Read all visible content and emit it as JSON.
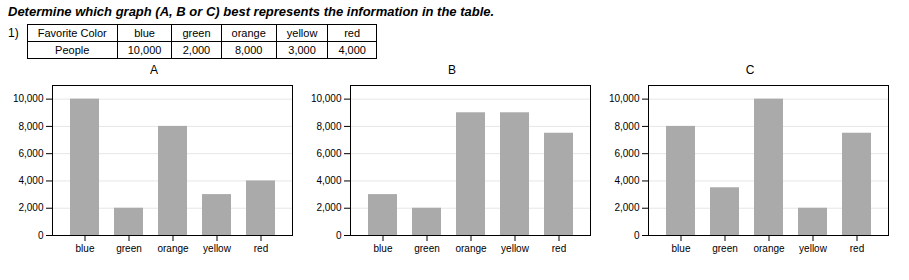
{
  "title": "Determine which graph (A, B or C) best represents the information in the table.",
  "chart_data": [
    {
      "type": "table",
      "annotations": [
        "1)"
      ],
      "columns": [
        "Favorite Color",
        "blue",
        "green",
        "orange",
        "yellow",
        "red"
      ],
      "rows": [
        [
          "People",
          "10,000",
          "2,000",
          "8,000",
          "3,000",
          "4,000"
        ]
      ]
    },
    {
      "type": "bar",
      "title": "A",
      "categories": [
        "blue",
        "green",
        "orange",
        "yellow",
        "red"
      ],
      "values": [
        10000,
        2000,
        8000,
        3000,
        4000
      ],
      "color": "#aaaaaa",
      "ylim": [
        0,
        11000
      ],
      "yticks": [
        0,
        {
          "value": 2000,
          "label": "2,000"
        },
        {
          "value": 4000,
          "label": "4,000"
        },
        {
          "value": 6000,
          "label": "6,000"
        },
        {
          "value": 8000,
          "label": "8,000"
        },
        {
          "value": 10000,
          "label": "10,000"
        }
      ],
      "grid": true
    },
    {
      "type": "bar",
      "title": "B",
      "categories": [
        "blue",
        "green",
        "orange",
        "yellow",
        "red"
      ],
      "values": [
        3000,
        2000,
        9000,
        9000,
        7500
      ],
      "color": "#aaaaaa",
      "ylim": [
        0,
        11000
      ],
      "yticks": [
        0,
        {
          "value": 2000,
          "label": "2,000"
        },
        {
          "value": 4000,
          "label": "4,000"
        },
        {
          "value": 6000,
          "label": "6,000"
        },
        {
          "value": 8000,
          "label": "8,000"
        },
        {
          "value": 10000,
          "label": "10,000"
        }
      ],
      "grid": true
    },
    {
      "type": "bar",
      "title": "C",
      "categories": [
        "blue",
        "green",
        "orange",
        "yellow",
        "red"
      ],
      "values": [
        8000,
        3500,
        10000,
        2000,
        7500
      ],
      "color": "#aaaaaa",
      "ylim": [
        0,
        11000
      ],
      "yticks": [
        0,
        {
          "value": 2000,
          "label": "2,000"
        },
        {
          "value": 4000,
          "label": "4,000"
        },
        {
          "value": 6000,
          "label": "6,000"
        },
        {
          "value": 8000,
          "label": "8,000"
        },
        {
          "value": 10000,
          "label": "10,000"
        }
      ],
      "grid": true
    }
  ]
}
